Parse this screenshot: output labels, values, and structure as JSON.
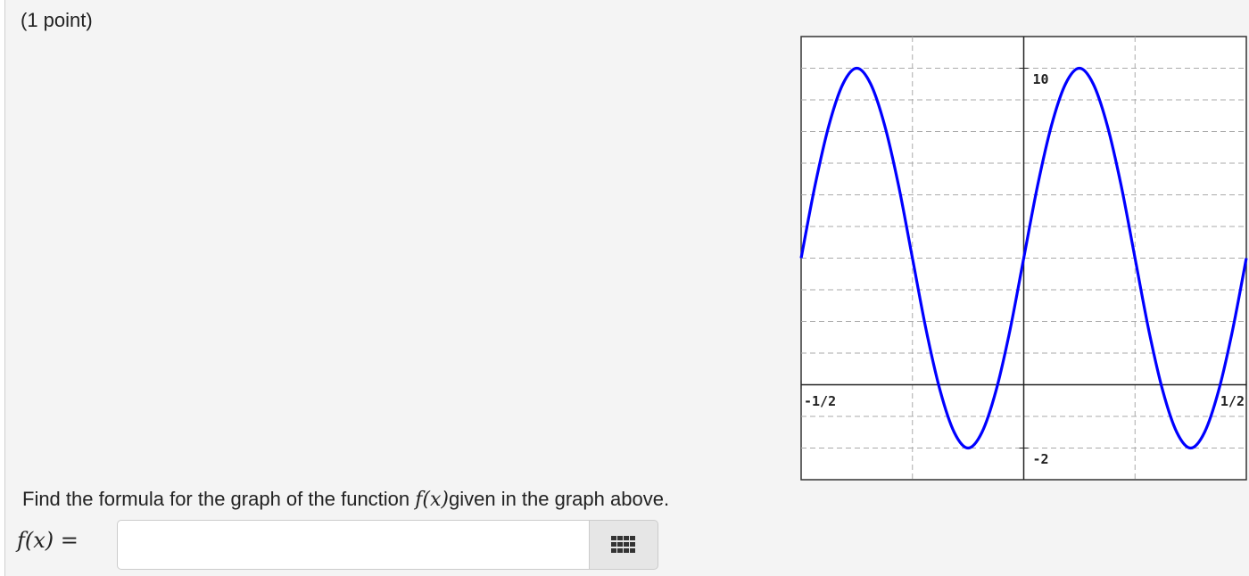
{
  "header": {
    "points": "(1 point)"
  },
  "chart_data": {
    "type": "line",
    "x": [
      -0.5,
      -0.46875,
      -0.4375,
      -0.40625,
      -0.375,
      -0.34375,
      -0.3125,
      -0.28125,
      -0.25,
      -0.21875,
      -0.1875,
      -0.15625,
      -0.125,
      -0.09375,
      -0.0625,
      -0.03125,
      0,
      0.03125,
      0.0625,
      0.09375,
      0.125,
      0.15625,
      0.1875,
      0.21875,
      0.25,
      0.28125,
      0.3125,
      0.34375,
      0.375,
      0.40625,
      0.4375,
      0.46875,
      0.5
    ],
    "values": [
      4,
      6.3,
      8.2,
      9.5,
      10,
      9.5,
      8.2,
      6.3,
      4,
      1.7,
      -0.2,
      -1.5,
      -2,
      -1.5,
      -0.2,
      1.7,
      4,
      6.3,
      8.2,
      9.5,
      10,
      9.5,
      8.2,
      6.3,
      4,
      1.7,
      -0.2,
      -1.5,
      -2,
      -1.5,
      -0.2,
      1.7,
      4
    ],
    "color": "#0000ff",
    "xlim": [
      -0.5,
      0.5
    ],
    "ylim": [
      -3,
      11
    ],
    "xticks": [
      {
        "value": -0.5,
        "label": "-1/2"
      },
      {
        "value": 0.5,
        "label": "1/2"
      }
    ],
    "yticks": [
      10,
      -2
    ],
    "xgrid": [
      -0.25,
      0.25
    ],
    "ygrid": [
      -2,
      -1,
      1,
      2,
      3,
      4,
      5,
      6,
      7,
      8,
      9,
      10
    ],
    "grid": true
  },
  "question": {
    "before": "Find the formula for the graph of the function ",
    "math": "f(x)",
    "after": "given in the graph above."
  },
  "answer": {
    "label": "f(x) ="
  }
}
